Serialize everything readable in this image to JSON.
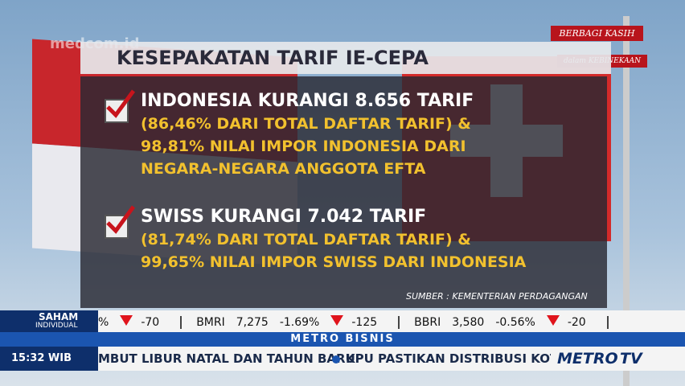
{
  "watermark": "medcom.id",
  "badge": {
    "line1": "BERBAGI KASIH",
    "line2": "dalam KEBINEKAAN"
  },
  "title": "KESEPAKATAN TARIF IE-CEPA",
  "items": [
    {
      "heading": "INDONESIA KURANGI 8.656 TARIF",
      "lines": [
        "(86,46% DARI TOTAL DAFTAR TARIF) &",
        "98,81% NILAI IMPOR INDONESIA DARI",
        "NEGARA-NEGARA ANGGOTA EFTA"
      ]
    },
    {
      "heading": "SWISS KURANGI 7.042 TARIF",
      "lines": [
        "(81,74% DARI TOTAL DAFTAR TARIF) &",
        "99,65% NILAI IMPOR SWISS DARI INDONESIA"
      ]
    }
  ],
  "source": "SUMBER : KEMENTERIAN PERDAGANGAN",
  "ticker": {
    "label1": "SAHAM",
    "label2": "INDIVIDUAL",
    "stocks": [
      {
        "pct": "%",
        "change": "-70"
      },
      {
        "code": "BMRI",
        "price": "7,275",
        "pct": "-1.69%",
        "change": "-125"
      },
      {
        "code": "BBRI",
        "price": "3,580",
        "pct": "-0.56%",
        "change": "-20"
      }
    ]
  },
  "program": "METRO BISNIS",
  "time": "15:32 WIB",
  "news": [
    "MBUT LIBUR NATAL DAN TAHUN BARU",
    "KPU PASTIKAN DISTRIBUSI KOTAK S"
  ],
  "channel": {
    "part1": "METRO",
    "part2": "TV"
  }
}
